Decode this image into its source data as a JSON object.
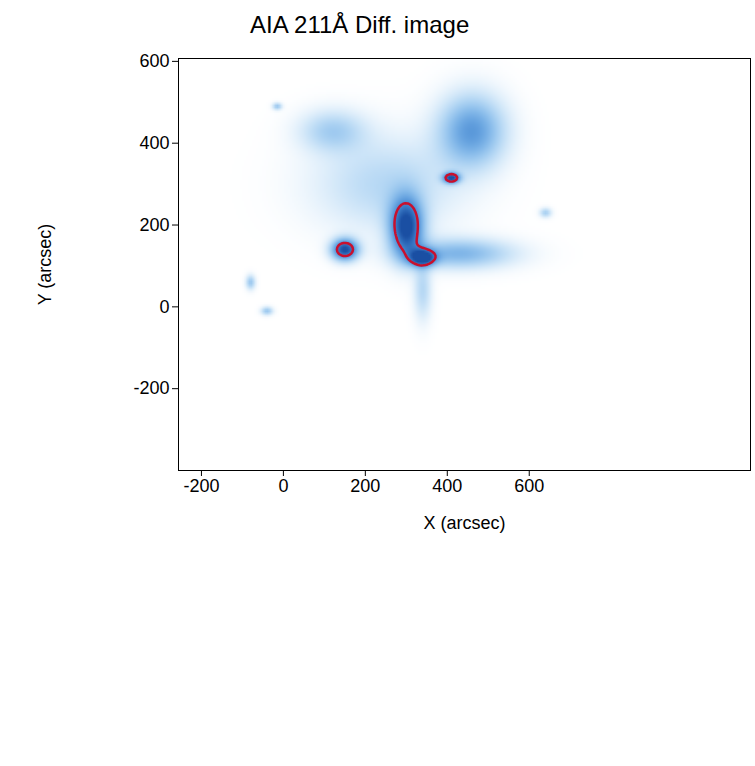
{
  "chart_data": {
    "type": "image",
    "title": "AIA 211Å Diff. image",
    "x_label": "X (arcsec)",
    "y_label": "Y (arcsec)",
    "xlim": [
      -256,
      1140
    ],
    "ylim": [
      -400,
      607
    ],
    "xticks": [
      -200,
      0,
      200,
      400,
      600
    ],
    "yticks": [
      -200,
      0,
      200,
      400,
      600
    ],
    "color_range": [
      0,
      1
    ],
    "contour_level": 0.7,
    "colors": [
      "#1a4fa3",
      "#c8102e"
    ],
    "sources": [
      {
        "x": 300,
        "y": 195,
        "sx": 28,
        "sy": 50,
        "amplitude": 1.0
      },
      {
        "x": 340,
        "y": 120,
        "sx": 22,
        "sy": 14,
        "amplitude": 0.9
      },
      {
        "x": 150,
        "y": 140,
        "sx": 22,
        "sy": 18,
        "amplitude": 1.0
      },
      {
        "x": 410,
        "y": 315,
        "sx": 14,
        "sy": 9,
        "amplitude": 0.9
      },
      {
        "x": 460,
        "y": 430,
        "sx": 55,
        "sy": 60,
        "amplitude": 0.6
      },
      {
        "x": 430,
        "y": 130,
        "sx": 90,
        "sy": 25,
        "amplitude": 0.45
      },
      {
        "x": 250,
        "y": 300,
        "sx": 120,
        "sy": 80,
        "amplitude": 0.25
      },
      {
        "x": 120,
        "y": 430,
        "sx": 55,
        "sy": 35,
        "amplitude": 0.3
      },
      {
        "x": 340,
        "y": 40,
        "sx": 15,
        "sy": 50,
        "amplitude": 0.25
      },
      {
        "x": -80,
        "y": 60,
        "sx": 8,
        "sy": 12,
        "amplitude": 0.35
      },
      {
        "x": -40,
        "y": -10,
        "sx": 10,
        "sy": 7,
        "amplitude": 0.35
      },
      {
        "x": 640,
        "y": 230,
        "sx": 10,
        "sy": 8,
        "amplitude": 0.3
      },
      {
        "x": -15,
        "y": 490,
        "sx": 8,
        "sy": 6,
        "amplitude": 0.35
      }
    ]
  }
}
